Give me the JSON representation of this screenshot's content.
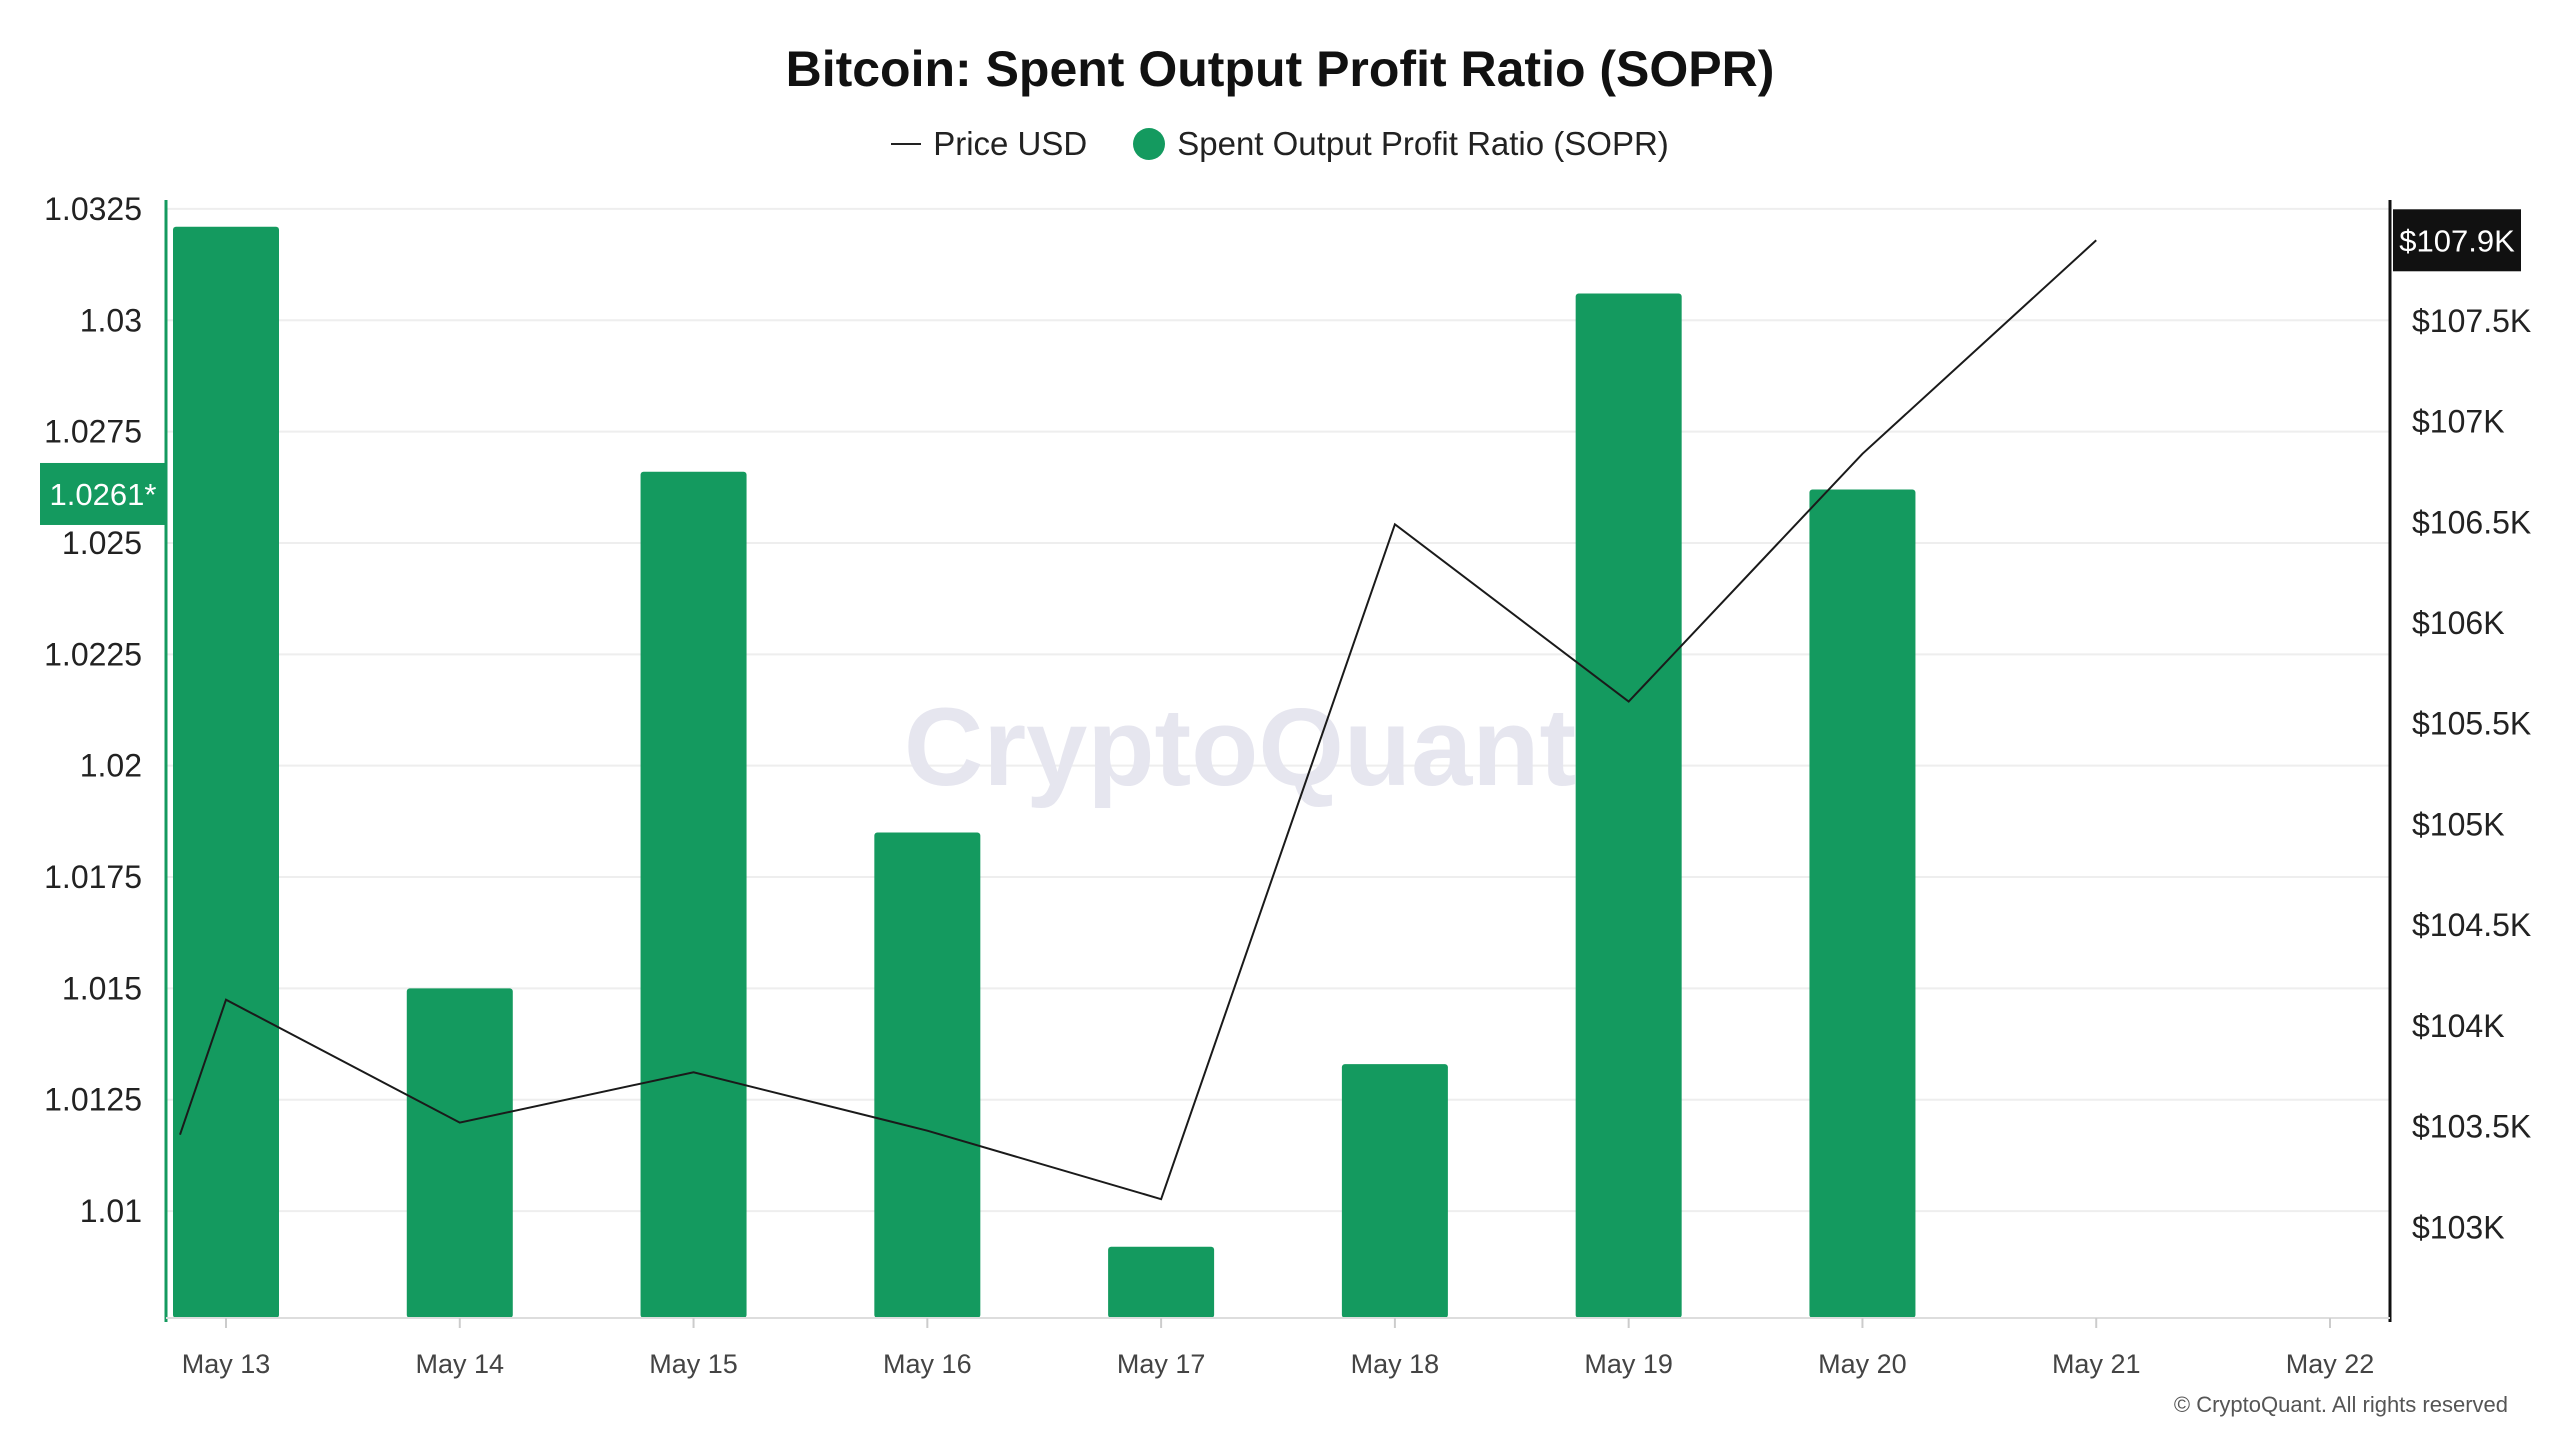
{
  "colors": {
    "bar": "#149a5f",
    "price_line": "#1a1a1a",
    "grid": "#eeeeee",
    "watermark": "#e6e6ef",
    "right_badge_bg": "#111111"
  },
  "watermark": "CryptoQuant",
  "footer": "© CryptoQuant. All rights reserved",
  "chart_data": {
    "type": "bar",
    "title": "Bitcoin: Spent Output Profit Ratio (SOPR)",
    "legend_position": "top-center",
    "grid": true,
    "categories": [
      "May 13",
      "May 14",
      "May 15",
      "May 16",
      "May 17",
      "May 18",
      "May 19",
      "May 20",
      "May 21",
      "May 22"
    ],
    "series": [
      {
        "name": "Spent Output Profit Ratio (SOPR)",
        "type": "bar",
        "axis": "left",
        "values": [
          1.0321,
          1.015,
          1.0266,
          1.0185,
          1.0092,
          1.0133,
          1.0306,
          1.0262,
          null,
          null
        ]
      },
      {
        "name": "Price USD",
        "type": "line",
        "axis": "right",
        "values": [
          104130,
          103520,
          103770,
          103480,
          103140,
          106490,
          105610,
          106840,
          107900,
          null
        ],
        "start_value": 103460
      }
    ],
    "left_axis": {
      "ticks": [
        "1.0325",
        "1.03",
        "1.0275",
        "1.025",
        "1.0225",
        "1.02",
        "1.0175",
        "1.015",
        "1.0125",
        "1.01"
      ],
      "range": [
        1.0076,
        1.0327
      ],
      "current_label": "1.0261*",
      "current_value": 1.0261
    },
    "right_axis": {
      "ticks": [
        "$107.5K",
        "$107K",
        "$106.5K",
        "$106K",
        "$105.5K",
        "$105K",
        "$104.5K",
        "$104K",
        "$103.5K",
        "$103K"
      ],
      "tick_values": [
        107500,
        107000,
        106500,
        106000,
        105500,
        105000,
        104500,
        104000,
        103500,
        103000
      ],
      "range": [
        102550,
        108100
      ],
      "current_label": "$107.9K",
      "current_value": 107900
    }
  }
}
